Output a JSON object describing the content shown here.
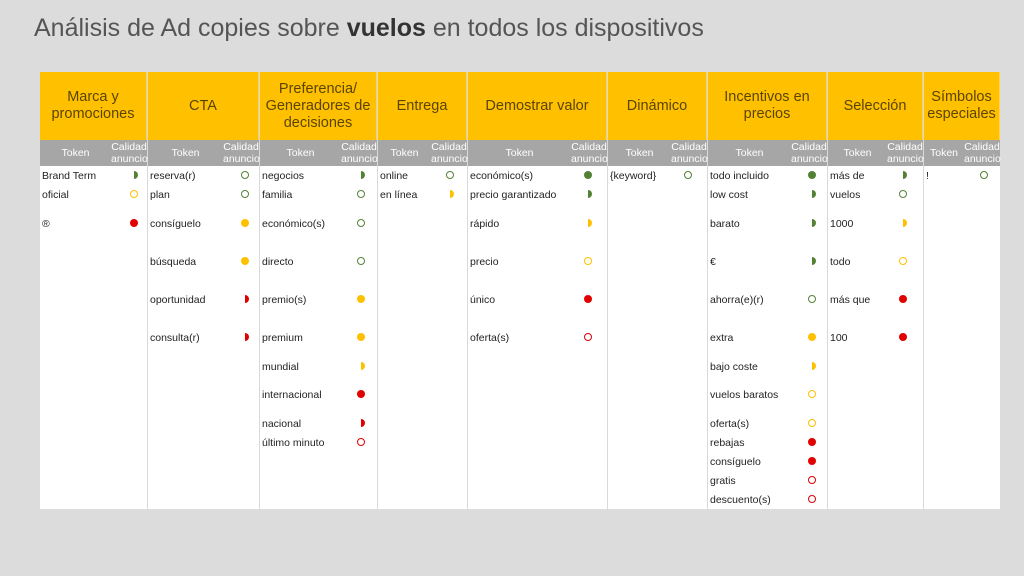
{
  "title": {
    "before": "Análisis de Ad copies sobre ",
    "bold": "vuelos",
    "after": " en todos los dispositivos"
  },
  "sub_labels": {
    "token": "Token",
    "quality": "Calidad anuncio"
  },
  "colors": {
    "header_bg": "#ffc000",
    "subheader_bg": "#a6a6a6",
    "good": "#548235",
    "medium": "#ffc000",
    "bad": "#e00000"
  },
  "columns": [
    {
      "header": "Marca y promociones",
      "rows": [
        {
          "token": "Brand Term",
          "rating": "half-green"
        },
        {
          "token": "oficial",
          "rating": "empty-yellow"
        },
        {
          "token": "®",
          "rating": "full-red"
        }
      ]
    },
    {
      "header": "CTA",
      "rows": [
        {
          "token": "reserva(r)",
          "rating": "empty-green"
        },
        {
          "token": "plan",
          "rating": "empty-green"
        },
        {
          "token": "consíguelo",
          "rating": "full-yellow"
        },
        {
          "token": "búsqueda",
          "rating": "full-yellow"
        },
        {
          "token": "oportunidad",
          "rating": "half-red"
        },
        {
          "token": "consulta(r)",
          "rating": "half-red"
        }
      ]
    },
    {
      "header": "Preferencia/ Generadores de decisiones",
      "rows": [
        {
          "token": "negocios",
          "rating": "half-green"
        },
        {
          "token": "familia",
          "rating": "empty-green"
        },
        {
          "token": "económico(s)",
          "rating": "empty-green"
        },
        {
          "token": "directo",
          "rating": "empty-green"
        },
        {
          "token": "premio(s)",
          "rating": "full-yellow"
        },
        {
          "token": "premium",
          "rating": "full-yellow"
        },
        {
          "token": "mundial",
          "rating": "half-yellow"
        },
        {
          "token": "internacional",
          "rating": "full-red"
        },
        {
          "token": "nacional",
          "rating": "half-red"
        },
        {
          "token": "último minuto",
          "rating": "empty-red"
        }
      ]
    },
    {
      "header": "Entrega",
      "rows": [
        {
          "token": "online",
          "rating": "empty-green"
        },
        {
          "token": "en línea",
          "rating": "half-yellow"
        }
      ]
    },
    {
      "header": "Demostrar valor",
      "rows": [
        {
          "token": "económico(s)",
          "rating": "full-green"
        },
        {
          "token": "precio garantizado",
          "rating": "half-green"
        },
        {
          "token": "rápido",
          "rating": "half-yellow"
        },
        {
          "token": "precio",
          "rating": "empty-yellow"
        },
        {
          "token": "único",
          "rating": "full-red"
        },
        {
          "token": "oferta(s)",
          "rating": "empty-red"
        }
      ]
    },
    {
      "header": "Dinámico",
      "rows": [
        {
          "token": "{keyword}",
          "rating": "empty-green"
        }
      ]
    },
    {
      "header": "Incentivos en precios",
      "rows": [
        {
          "token": "todo incluido",
          "rating": "full-green"
        },
        {
          "token": "low cost",
          "rating": "half-green"
        },
        {
          "token": "barato",
          "rating": "half-green"
        },
        {
          "token": "€",
          "rating": "half-green"
        },
        {
          "token": "ahorra(e)(r)",
          "rating": "empty-green"
        },
        {
          "token": "extra",
          "rating": "full-yellow"
        },
        {
          "token": "bajo coste",
          "rating": "half-yellow"
        },
        {
          "token": "vuelos baratos",
          "rating": "empty-yellow"
        },
        {
          "token": "oferta(s)",
          "rating": "empty-yellow"
        },
        {
          "token": "rebajas",
          "rating": "full-red"
        },
        {
          "token": "consíguelo",
          "rating": "full-red"
        },
        {
          "token": "gratis",
          "rating": "empty-red"
        },
        {
          "token": "descuento(s)",
          "rating": "empty-red"
        }
      ]
    },
    {
      "header": "Selección",
      "rows": [
        {
          "token": "más de",
          "rating": "half-green"
        },
        {
          "token": "vuelos",
          "rating": "empty-green"
        },
        {
          "token": "1000",
          "rating": "half-yellow"
        },
        {
          "token": "todo",
          "rating": "empty-yellow"
        },
        {
          "token": "más que",
          "rating": "full-red"
        },
        {
          "token": "100",
          "rating": "full-red"
        }
      ]
    },
    {
      "header": "Símbolos especiales",
      "rows": [
        {
          "token": "!",
          "rating": "empty-green"
        }
      ]
    }
  ]
}
